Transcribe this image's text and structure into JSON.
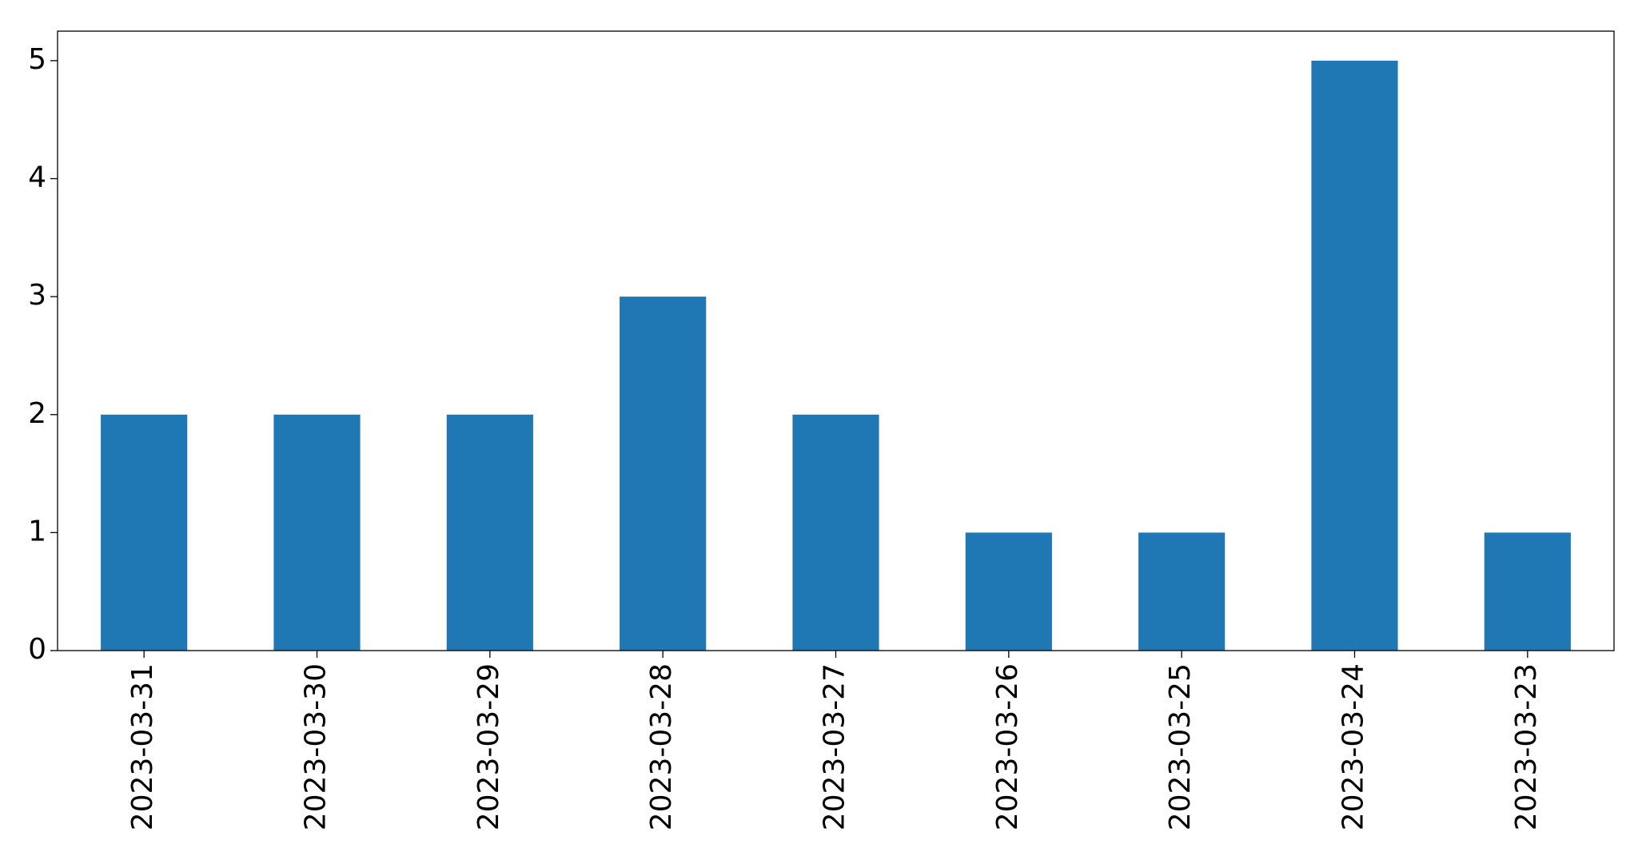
{
  "chart_data": {
    "type": "bar",
    "categories": [
      "2023-03-31",
      "2023-03-30",
      "2023-03-29",
      "2023-03-28",
      "2023-03-27",
      "2023-03-26",
      "2023-03-25",
      "2023-03-24",
      "2023-03-23"
    ],
    "values": [
      2,
      2,
      2,
      3,
      2,
      1,
      1,
      5,
      1
    ],
    "color": "#1f77b4",
    "ylim": [
      0,
      5.25
    ],
    "yticks": [
      0,
      1,
      2,
      3,
      4,
      5
    ],
    "grid": false
  }
}
